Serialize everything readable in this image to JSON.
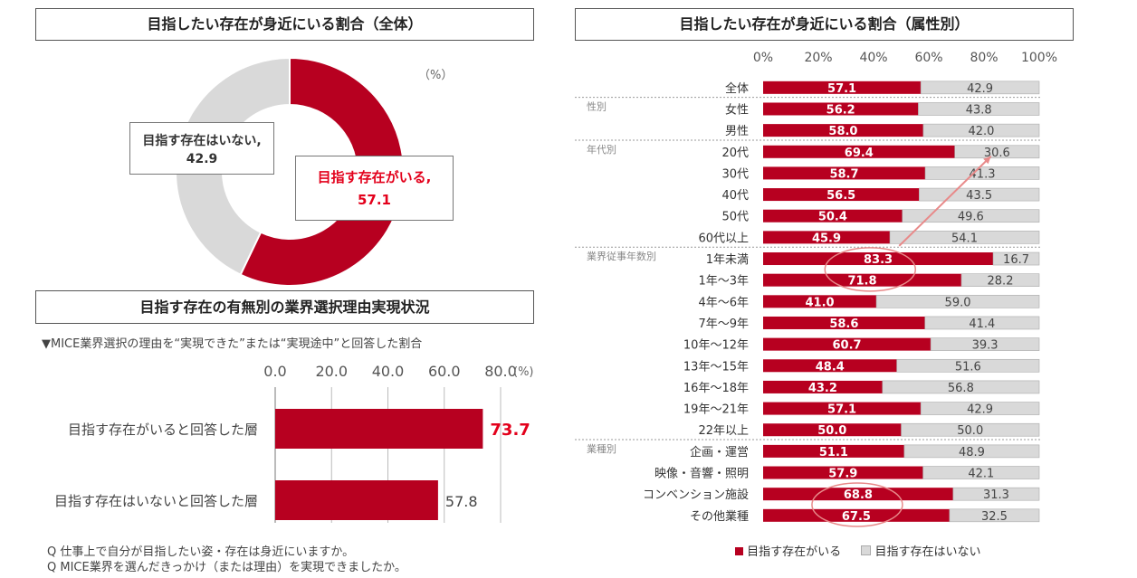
{
  "donut": {
    "title": "目指したい存在が身近にいる割合（全体）",
    "unit": "（%）",
    "slices": [
      {
        "label": "目指す存在がいる,",
        "value": 57.1,
        "color": "#b70020"
      },
      {
        "label": "目指す存在はいない,",
        "value": 42.9,
        "color": "#d9d9d9"
      }
    ]
  },
  "reason": {
    "title": "目指す存在の有無別の業界選択理由実現状況",
    "subtitle": "▼MICE業界選択の理由を“実現できた”または“実現途中”と回答した割合",
    "ticks": [
      "0.0",
      "20.0",
      "40.0",
      "60.0",
      "80.0"
    ],
    "unit": "(%)",
    "notes": [
      "Q 仕事上で自分が目指したい姿・存在は身近にいますか。",
      "Q MICE業界を選んだきっかけ（または理由）を実現できましたか。"
    ]
  },
  "attr": {
    "title": "目指したい存在が身近にいる割合（属性別）",
    "ticks": [
      "0%",
      "20%",
      "40%",
      "60%",
      "80%",
      "100%"
    ],
    "groups": [
      "性別",
      "年代別",
      "業界従事年数別",
      "業種別"
    ],
    "legend": [
      "目指す存在がいる",
      "目指す存在はいない"
    ]
  },
  "chart_data": [
    {
      "type": "pie",
      "title": "目指したい存在が身近にいる割合（全体）",
      "categories": [
        "目指す存在がいる",
        "目指す存在はいない"
      ],
      "values": [
        57.1,
        42.9
      ]
    },
    {
      "type": "bar",
      "orientation": "horizontal",
      "title": "目指す存在の有無別の業界選択理由実現状況",
      "categories": [
        "目指す存在がいると回答した層",
        "目指す存在はいないと回答した層"
      ],
      "values": [
        73.7,
        57.8
      ],
      "xlim": [
        0,
        80
      ]
    },
    {
      "type": "bar",
      "orientation": "horizontal",
      "stacked": true,
      "title": "目指したい存在が身近にいる割合（属性別）",
      "categories": [
        "全体",
        "女性",
        "男性",
        "20代",
        "30代",
        "40代",
        "50代",
        "60代以上",
        "1年未満",
        "1年～3年",
        "4年～6年",
        "7年～9年",
        "10年～12年",
        "13年～15年",
        "16年～18年",
        "19年～21年",
        "22年以上",
        "企画・運営",
        "映像・音響・照明",
        "コンベンション施設",
        "その他業種"
      ],
      "series": [
        {
          "name": "目指す存在がいる",
          "values": [
            57.1,
            56.2,
            58.0,
            69.4,
            58.7,
            56.5,
            50.4,
            45.9,
            83.3,
            71.8,
            41.0,
            58.6,
            60.7,
            48.4,
            43.2,
            57.1,
            50.0,
            51.1,
            57.9,
            68.8,
            67.5
          ]
        },
        {
          "name": "目指す存在はいない",
          "values": [
            42.9,
            43.8,
            42.0,
            30.6,
            41.3,
            43.5,
            49.6,
            54.1,
            16.7,
            28.2,
            59.0,
            41.4,
            39.3,
            51.6,
            56.8,
            42.9,
            50.0,
            48.9,
            42.1,
            31.3,
            32.5
          ]
        }
      ],
      "xlim": [
        0,
        100
      ]
    }
  ]
}
